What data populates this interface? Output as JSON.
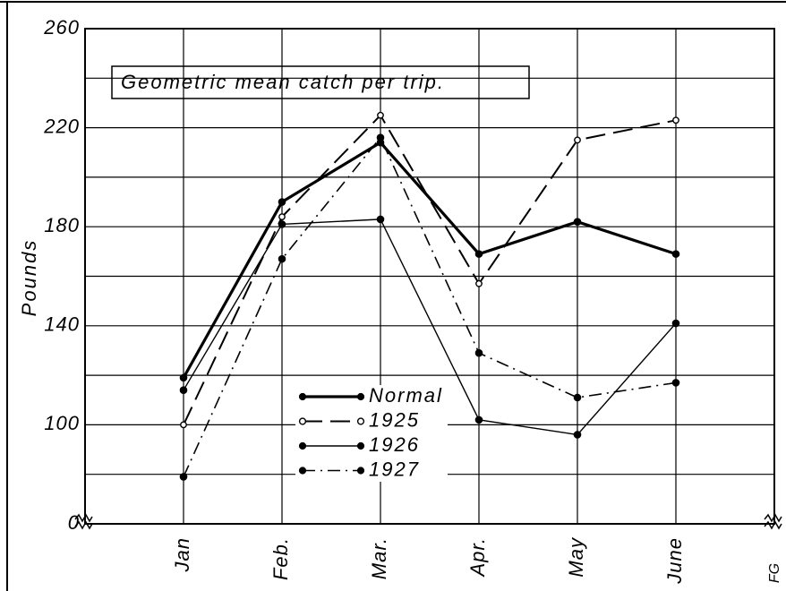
{
  "chart_data": {
    "type": "line",
    "title": "Geometric mean catch per trip.",
    "y_label": "Pounds",
    "signature": "FG",
    "categories": [
      "Jan",
      "Feb.",
      "Mar.",
      "Apr.",
      "May",
      "June"
    ],
    "series": [
      {
        "name": "Normal",
        "color": "#000000",
        "width": 3.2,
        "dash": "",
        "marker": "filled",
        "values": [
          119,
          190,
          214,
          169,
          182,
          169
        ]
      },
      {
        "name": "1925",
        "color": "#000000",
        "width": 2,
        "dash": "22 9",
        "marker": "open",
        "values": [
          100,
          184,
          225,
          157,
          215,
          223
        ]
      },
      {
        "name": "1926",
        "color": "#000000",
        "width": 1.4,
        "dash": "",
        "marker": "filled",
        "values": [
          114,
          181,
          183,
          102,
          96,
          141
        ]
      },
      {
        "name": "1927",
        "color": "#000000",
        "width": 1.6,
        "dash": "14 6 2 6",
        "marker": "filled",
        "values": [
          79,
          167,
          216,
          129,
          111,
          117
        ]
      }
    ],
    "ylim": [
      60,
      260
    ],
    "yticks": [
      {
        "value": 60,
        "label": "0"
      },
      100,
      140,
      180,
      220,
      260
    ],
    "ygrid": [
      80,
      100,
      120,
      140,
      160,
      180,
      200,
      220,
      240
    ],
    "grid": true
  }
}
